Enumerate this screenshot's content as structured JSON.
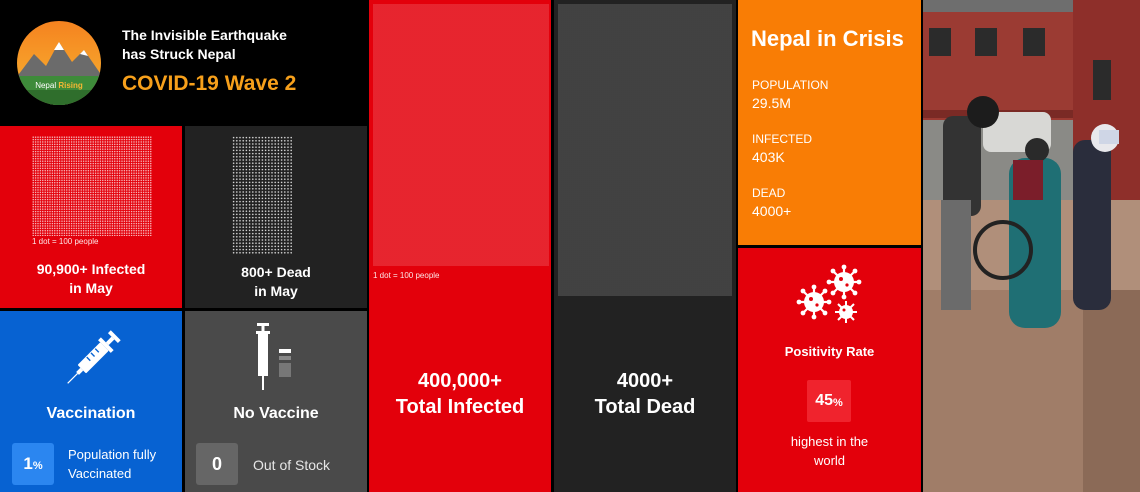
{
  "header": {
    "logo_text_a": "Nepal",
    "logo_text_b": "Rising",
    "title_line1": "The Invisible Earthquake",
    "title_line2": "has Struck Nepal",
    "subtitle": "COVID-19 Wave 2"
  },
  "may_infected": {
    "dot_legend": "1 dot = 100 people",
    "line1": "90,900+ Infected",
    "line2": "in May"
  },
  "may_dead": {
    "line1": "800+ Dead",
    "line2": "in May"
  },
  "vaccination": {
    "title": "Vaccination",
    "value": "1",
    "unit": "%",
    "caption_line1": "Population fully",
    "caption_line2": "Vaccinated",
    "icon": "syringe-icon"
  },
  "no_vaccine": {
    "title": "No Vaccine",
    "value": "0",
    "caption": "Out of Stock",
    "icon": "vaccine-vials-icon"
  },
  "total_infected": {
    "dot_legend": "1 dot = 100 people",
    "line1": "400,000+",
    "line2": "Total Infected"
  },
  "total_dead": {
    "line1": "4000+",
    "line2": "Total Dead"
  },
  "crisis": {
    "title": "Nepal in Crisis",
    "stats": [
      {
        "label": "POPULATION",
        "value": "29.5M"
      },
      {
        "label": "INFECTED",
        "value": "403K"
      },
      {
        "label": "DEAD",
        "value": "4000+"
      }
    ]
  },
  "positivity": {
    "title": "Positivity Rate",
    "value": "45",
    "unit": "%",
    "caption_line1": "highest in the",
    "caption_line2": "world",
    "icon": "virus-icon"
  },
  "colors": {
    "red": "#e3000b",
    "orange": "#f97d05",
    "blue": "#0762d2",
    "dark": "#222222",
    "accent_orange": "#f7a01b"
  }
}
